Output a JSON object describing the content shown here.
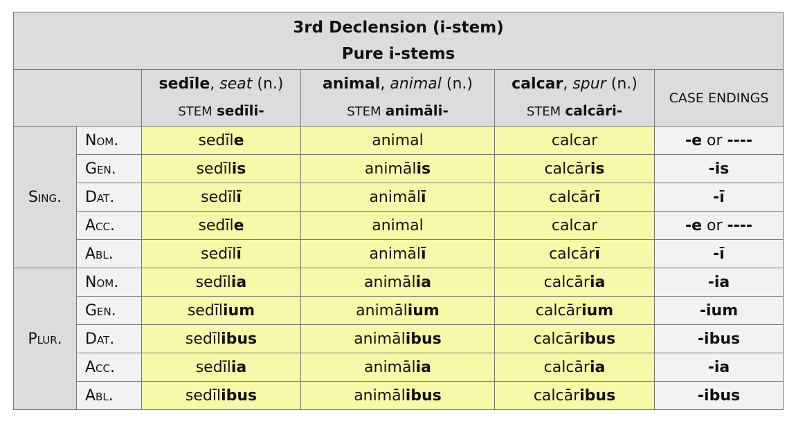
{
  "title": {
    "line1": "3rd Declension (i-stem)",
    "line2": "Pure i-stems"
  },
  "header": {
    "nouns": [
      {
        "lemma": "sedīle",
        "gloss": "seat",
        "gender": "(n.)",
        "stem_label": "STEM",
        "stem": "sedīli-"
      },
      {
        "lemma": "animal",
        "gloss": "animal",
        "gender": "(n.)",
        "stem_label": "STEM",
        "stem": "animāli-"
      },
      {
        "lemma": "calcar",
        "gloss": "spur",
        "gender": "(n.)",
        "stem_label": "STEM",
        "stem": "calcāri-"
      }
    ],
    "endings_label": "CASE ENDINGS"
  },
  "groups": [
    {
      "number": "Sing.",
      "rows": [
        {
          "case": "Nom.",
          "forms": [
            [
              "sedīl",
              "e"
            ],
            [
              "animal",
              ""
            ],
            [
              "calcar",
              ""
            ]
          ],
          "ending": [
            "-e",
            " or ",
            "----"
          ]
        },
        {
          "case": "Gen.",
          "forms": [
            [
              "sedīl",
              "is"
            ],
            [
              "animāl",
              "is"
            ],
            [
              "calcār",
              "is"
            ]
          ],
          "ending": [
            "-is",
            "",
            ""
          ]
        },
        {
          "case": "Dat.",
          "forms": [
            [
              "sedīl",
              "ī"
            ],
            [
              "animāl",
              "ī"
            ],
            [
              "calcār",
              "ī"
            ]
          ],
          "ending": [
            "-ī",
            "",
            ""
          ]
        },
        {
          "case": "Acc.",
          "forms": [
            [
              "sedīl",
              "e"
            ],
            [
              "animal",
              ""
            ],
            [
              "calcar",
              ""
            ]
          ],
          "ending": [
            "-e",
            " or ",
            "----"
          ]
        },
        {
          "case": "Abl.",
          "forms": [
            [
              "sedīl",
              "ī"
            ],
            [
              "animāl",
              "ī"
            ],
            [
              "calcār",
              "ī"
            ]
          ],
          "ending": [
            "-ī",
            "",
            ""
          ]
        }
      ]
    },
    {
      "number": "Plur.",
      "rows": [
        {
          "case": "Nom.",
          "forms": [
            [
              "sedīl",
              "ia"
            ],
            [
              "animāl",
              "ia"
            ],
            [
              "calcār",
              "ia"
            ]
          ],
          "ending": [
            "-ia",
            "",
            ""
          ]
        },
        {
          "case": "Gen.",
          "forms": [
            [
              "sedīl",
              "ium"
            ],
            [
              "animāl",
              "ium"
            ],
            [
              "calcār",
              "ium"
            ]
          ],
          "ending": [
            "-ium",
            "",
            ""
          ]
        },
        {
          "case": "Dat.",
          "forms": [
            [
              "sedīl",
              "ibus"
            ],
            [
              "animāl",
              "ibus"
            ],
            [
              "calcār",
              "ibus"
            ]
          ],
          "ending": [
            "-ibus",
            "",
            ""
          ]
        },
        {
          "case": "Acc.",
          "forms": [
            [
              "sedīl",
              "ia"
            ],
            [
              "animāl",
              "ia"
            ],
            [
              "calcār",
              "ia"
            ]
          ],
          "ending": [
            "-ia",
            "",
            ""
          ]
        },
        {
          "case": "Abl.",
          "forms": [
            [
              "sedīl",
              "ibus"
            ],
            [
              "animāl",
              "ibus"
            ],
            [
              "calcār",
              "ibus"
            ]
          ],
          "ending": [
            "-ibus",
            "",
            ""
          ]
        }
      ]
    }
  ],
  "colors": {
    "header": "#dcdcdc",
    "forms": "#f7f8a8",
    "case": "#f2f2f2",
    "border": "#777777"
  }
}
